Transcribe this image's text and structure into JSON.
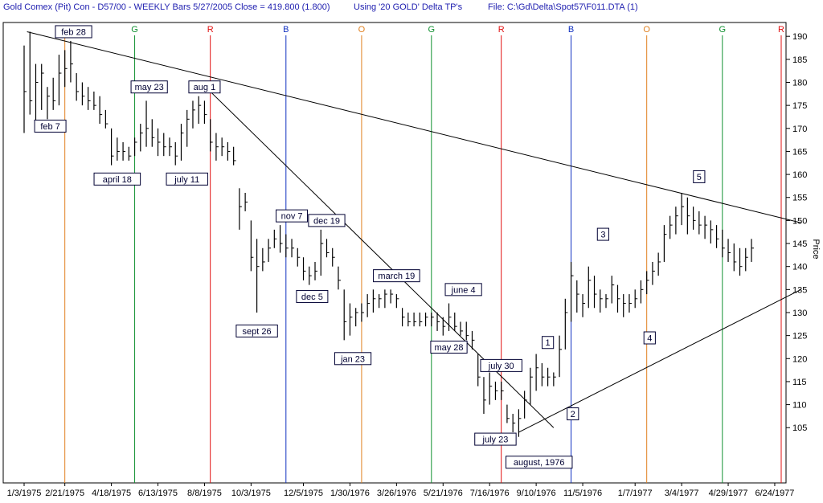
{
  "header": {
    "title": "Gold Comex (Pit) Con - D57/00  - WEEKLY Bars  5/27/2005 Close = 419.800 (1.800)",
    "using": "Using '20 GOLD' Delta TP's",
    "file": "File:  C:\\Gd\\Delta\\Spot57\\F011.DTA (1)"
  },
  "chart_data": {
    "type": "ohlc",
    "ylabel": "Price",
    "ylim": [
      93,
      193
    ],
    "y_ticks": [
      105,
      110,
      115,
      120,
      125,
      130,
      135,
      140,
      145,
      150,
      155,
      160,
      165,
      170,
      175,
      180,
      185,
      190
    ],
    "x_range": [
      0,
      130
    ],
    "x_ticks": [
      {
        "label": "1/3/1975",
        "i": 0
      },
      {
        "label": "2/21/1975",
        "i": 7
      },
      {
        "label": "4/18/1975",
        "i": 15
      },
      {
        "label": "6/13/1975",
        "i": 23
      },
      {
        "label": "8/8/1975",
        "i": 31
      },
      {
        "label": "10/3/1975",
        "i": 39
      },
      {
        "label": "12/5/1975",
        "i": 48
      },
      {
        "label": "1/30/1976",
        "i": 56
      },
      {
        "label": "3/26/1976",
        "i": 64
      },
      {
        "label": "5/21/1976",
        "i": 72
      },
      {
        "label": "7/16/1976",
        "i": 80
      },
      {
        "label": "9/10/1976",
        "i": 88
      },
      {
        "label": "11/5/1976",
        "i": 96
      },
      {
        "label": "1/7/1977",
        "i": 105
      },
      {
        "label": "3/4/1977",
        "i": 113
      },
      {
        "label": "4/29/1977",
        "i": 121
      },
      {
        "label": "6/24/1977",
        "i": 129
      }
    ],
    "turning_points": [
      {
        "label": "O",
        "i": 7,
        "color": "#e08020"
      },
      {
        "label": "G",
        "i": 19,
        "color": "#109030"
      },
      {
        "label": "R",
        "i": 32,
        "color": "#e01010"
      },
      {
        "label": "B",
        "i": 45,
        "color": "#1030c0"
      },
      {
        "label": "O",
        "i": 58,
        "color": "#e08020"
      },
      {
        "label": "G",
        "i": 70,
        "color": "#109030"
      },
      {
        "label": "R",
        "i": 82,
        "color": "#e01010"
      },
      {
        "label": "B",
        "i": 94,
        "color": "#1030c0"
      },
      {
        "label": "O",
        "i": 107,
        "color": "#e08020"
      },
      {
        "label": "G",
        "i": 120,
        "color": "#109030"
      },
      {
        "label": "R",
        "i": 132,
        "color": "#e01010"
      }
    ],
    "bars": [
      [
        0,
        188,
        169,
        178
      ],
      [
        1,
        191,
        173,
        176
      ],
      [
        2,
        184,
        170,
        180
      ],
      [
        3,
        184,
        174,
        182
      ],
      [
        4,
        179,
        172,
        177
      ],
      [
        5,
        181,
        174,
        176
      ],
      [
        6,
        186,
        175,
        182
      ],
      [
        7,
        187,
        179,
        183
      ],
      [
        8,
        189,
        180,
        184
      ],
      [
        9,
        182,
        176,
        178
      ],
      [
        10,
        180,
        175,
        177
      ],
      [
        11,
        179,
        174,
        176
      ],
      [
        12,
        178,
        174,
        175
      ],
      [
        13,
        177,
        171,
        173
      ],
      [
        14,
        174,
        170,
        171
      ],
      [
        15,
        170,
        162,
        164
      ],
      [
        16,
        168,
        163,
        165
      ],
      [
        17,
        167,
        163,
        165
      ],
      [
        18,
        166,
        163,
        164
      ],
      [
        19,
        168,
        164,
        167
      ],
      [
        20,
        171,
        165,
        169
      ],
      [
        21,
        176,
        166,
        170
      ],
      [
        22,
        172,
        166,
        168
      ],
      [
        23,
        170,
        164,
        167
      ],
      [
        24,
        169,
        164,
        166
      ],
      [
        25,
        168,
        164,
        166
      ],
      [
        26,
        167,
        162,
        164
      ],
      [
        27,
        171,
        163,
        169
      ],
      [
        28,
        174,
        166,
        172
      ],
      [
        29,
        176,
        170,
        174
      ],
      [
        30,
        177,
        171,
        175
      ],
      [
        31,
        176,
        171,
        173
      ],
      [
        32,
        172,
        165,
        167
      ],
      [
        33,
        169,
        163,
        166
      ],
      [
        34,
        168,
        164,
        166
      ],
      [
        35,
        167,
        163,
        165
      ],
      [
        36,
        166,
        162,
        163
      ],
      [
        37,
        157,
        148,
        153
      ],
      [
        38,
        156,
        152,
        154
      ],
      [
        39,
        150,
        139,
        142
      ],
      [
        40,
        146,
        130,
        140
      ],
      [
        41,
        144,
        139,
        141
      ],
      [
        42,
        146,
        141,
        144
      ],
      [
        43,
        148,
        144,
        146
      ],
      [
        44,
        149,
        143,
        145
      ],
      [
        45,
        147,
        142,
        144
      ],
      [
        46,
        146,
        142,
        144
      ],
      [
        47,
        144,
        140,
        142
      ],
      [
        48,
        142,
        137,
        139
      ],
      [
        49,
        140,
        136,
        138
      ],
      [
        50,
        141,
        137,
        139
      ],
      [
        51,
        148,
        138,
        145
      ],
      [
        52,
        146,
        142,
        143
      ],
      [
        53,
        144,
        140,
        142
      ],
      [
        54,
        140,
        135,
        137
      ],
      [
        55,
        135,
        124,
        128
      ],
      [
        56,
        132,
        125,
        129
      ],
      [
        57,
        131,
        127,
        130
      ],
      [
        58,
        132,
        128,
        130
      ],
      [
        59,
        134,
        129,
        132
      ],
      [
        60,
        135,
        130,
        133
      ],
      [
        61,
        134,
        131,
        133
      ],
      [
        62,
        135,
        131,
        134
      ],
      [
        63,
        135,
        132,
        134
      ],
      [
        64,
        134,
        131,
        133
      ],
      [
        65,
        131,
        127,
        129
      ],
      [
        66,
        130,
        127,
        128
      ],
      [
        67,
        130,
        127,
        128
      ],
      [
        68,
        130,
        127,
        128
      ],
      [
        69,
        130,
        127,
        129
      ],
      [
        70,
        130,
        127,
        129
      ],
      [
        71,
        130,
        126,
        128
      ],
      [
        72,
        129,
        125,
        127
      ],
      [
        73,
        132,
        126,
        129
      ],
      [
        74,
        130,
        126,
        127
      ],
      [
        75,
        128,
        125,
        126
      ],
      [
        76,
        128,
        124,
        125
      ],
      [
        77,
        126,
        122,
        124
      ],
      [
        78,
        121,
        114,
        116
      ],
      [
        79,
        116,
        108,
        111
      ],
      [
        80,
        117,
        110,
        114
      ],
      [
        81,
        115,
        111,
        113
      ],
      [
        82,
        115,
        111,
        113
      ],
      [
        83,
        110,
        106,
        107
      ],
      [
        84,
        108,
        104,
        106
      ],
      [
        85,
        109,
        103,
        107
      ],
      [
        86,
        113,
        107,
        111
      ],
      [
        87,
        118,
        110,
        116
      ],
      [
        88,
        121,
        113,
        118
      ],
      [
        89,
        119,
        114,
        116
      ],
      [
        90,
        118,
        114,
        116
      ],
      [
        91,
        117,
        114,
        116
      ],
      [
        92,
        125,
        116,
        122
      ],
      [
        93,
        133,
        122,
        130
      ],
      [
        94,
        141,
        128,
        138
      ],
      [
        95,
        137,
        130,
        134
      ],
      [
        96,
        134,
        129,
        132
      ],
      [
        97,
        140,
        131,
        137
      ],
      [
        98,
        138,
        131,
        134
      ],
      [
        99,
        135,
        130,
        133
      ],
      [
        100,
        134,
        131,
        133
      ],
      [
        101,
        138,
        132,
        136
      ],
      [
        102,
        136,
        130,
        133
      ],
      [
        103,
        134,
        129,
        132
      ],
      [
        104,
        134,
        130,
        132
      ],
      [
        105,
        135,
        131,
        133
      ],
      [
        106,
        137,
        132,
        135
      ],
      [
        107,
        139,
        134,
        137
      ],
      [
        108,
        141,
        136,
        139
      ],
      [
        109,
        143,
        138,
        141
      ],
      [
        110,
        149,
        141,
        147
      ],
      [
        111,
        151,
        146,
        149
      ],
      [
        112,
        153,
        147,
        151
      ],
      [
        113,
        156,
        149,
        153
      ],
      [
        114,
        155,
        147,
        151
      ],
      [
        115,
        153,
        148,
        150
      ],
      [
        116,
        152,
        147,
        149
      ],
      [
        117,
        151,
        146,
        149
      ],
      [
        118,
        150,
        145,
        148
      ],
      [
        119,
        149,
        144,
        146
      ],
      [
        120,
        148,
        142,
        144
      ],
      [
        121,
        146,
        141,
        143
      ],
      [
        122,
        145,
        139,
        141
      ],
      [
        123,
        144,
        138,
        140
      ],
      [
        124,
        144,
        139,
        142
      ],
      [
        125,
        146,
        141,
        144
      ]
    ],
    "trendlines": [
      {
        "from": [
          0.5,
          191
        ],
        "to": [
          133.5,
          149.5
        ]
      },
      {
        "from": [
          32,
          178
        ],
        "to": [
          91,
          105
        ]
      },
      {
        "from": [
          85,
          104
        ],
        "to": [
          133.5,
          135
        ]
      }
    ],
    "annotations": [
      {
        "text": "feb 28",
        "i": 8.5,
        "y": 191,
        "box": true
      },
      {
        "text": "feb 7",
        "i": 4.5,
        "y": 170.5,
        "box": true
      },
      {
        "text": "may 23",
        "i": 21.5,
        "y": 179,
        "box": true
      },
      {
        "text": "april 18",
        "i": 16,
        "y": 159,
        "box": true
      },
      {
        "text": "aug 1",
        "i": 31,
        "y": 179,
        "box": true
      },
      {
        "text": "july 11",
        "i": 28,
        "y": 159,
        "box": true
      },
      {
        "text": "nov 7",
        "i": 46,
        "y": 151,
        "box": true
      },
      {
        "text": "dec 19",
        "i": 52,
        "y": 150,
        "box": true
      },
      {
        "text": "dec 5",
        "i": 49.5,
        "y": 133.5,
        "box": true
      },
      {
        "text": "sept 26",
        "i": 40,
        "y": 126,
        "box": true
      },
      {
        "text": "jan 23",
        "i": 56.5,
        "y": 120,
        "box": true
      },
      {
        "text": "march 19",
        "i": 64,
        "y": 138,
        "box": true
      },
      {
        "text": "june 4",
        "i": 75.5,
        "y": 135,
        "box": true
      },
      {
        "text": "may 28",
        "i": 73,
        "y": 122.5,
        "box": true
      },
      {
        "text": "july 30",
        "i": 82,
        "y": 118.5,
        "box": true
      },
      {
        "text": "july 23",
        "i": 81,
        "y": 102.5,
        "box": true
      },
      {
        "text": "august, 1976",
        "i": 88.5,
        "y": 97.5,
        "box": true
      },
      {
        "text": "1",
        "i": 90,
        "y": 123.5,
        "box": true
      },
      {
        "text": "2",
        "i": 94.3,
        "y": 108,
        "box": true
      },
      {
        "text": "3",
        "i": 99.5,
        "y": 147,
        "box": true
      },
      {
        "text": "4",
        "i": 107.5,
        "y": 124.5,
        "box": true
      },
      {
        "text": "5",
        "i": 116,
        "y": 159.5,
        "box": true
      }
    ]
  }
}
